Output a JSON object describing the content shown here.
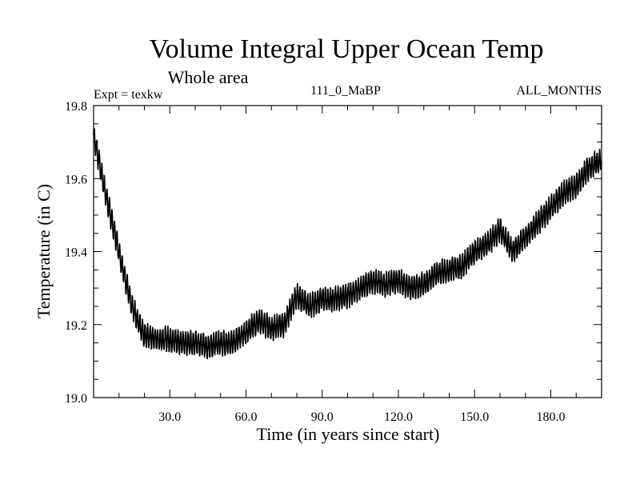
{
  "chart_data": {
    "type": "line",
    "title": "Volume Integral Upper Ocean Temp",
    "subtitle": "Whole area",
    "annotations": {
      "left": "Expt = texkw",
      "center": "111_0_MaBP",
      "right": "ALL_MONTHS"
    },
    "xlabel": "Time (in years since start)",
    "ylabel": "Temperature (in C)",
    "xlim": [
      0,
      200
    ],
    "ylim": [
      19.0,
      19.8
    ],
    "xticks": [
      30,
      60,
      90,
      120,
      150,
      180
    ],
    "xtick_labels": [
      "30.0",
      "60.0",
      "90.0",
      "120.0",
      "150.0",
      "180.0"
    ],
    "yticks": [
      19.0,
      19.2,
      19.4,
      19.6,
      19.8
    ],
    "ytick_labels": [
      "19.0",
      "19.2",
      "19.4",
      "19.6",
      "19.8"
    ],
    "grid": false,
    "series": [
      {
        "name": "Temperature",
        "color": "#000000",
        "seasonal_amplitude": 0.03,
        "x": [
          0,
          5,
          10,
          15,
          20,
          25,
          30,
          35,
          40,
          45,
          50,
          55,
          60,
          65,
          70,
          75,
          80,
          85,
          90,
          95,
          100,
          105,
          110,
          115,
          120,
          125,
          130,
          135,
          140,
          145,
          150,
          155,
          160,
          165,
          170,
          175,
          180,
          185,
          190,
          195,
          200
        ],
        "values": [
          19.72,
          19.55,
          19.4,
          19.25,
          19.17,
          19.16,
          19.16,
          19.15,
          19.15,
          19.14,
          19.15,
          19.15,
          19.18,
          19.21,
          19.19,
          19.2,
          19.28,
          19.25,
          19.27,
          19.27,
          19.28,
          19.3,
          19.32,
          19.31,
          19.32,
          19.3,
          19.31,
          19.34,
          19.35,
          19.36,
          19.4,
          19.42,
          19.46,
          19.4,
          19.44,
          19.48,
          19.52,
          19.56,
          19.58,
          19.63,
          19.65
        ]
      }
    ]
  }
}
